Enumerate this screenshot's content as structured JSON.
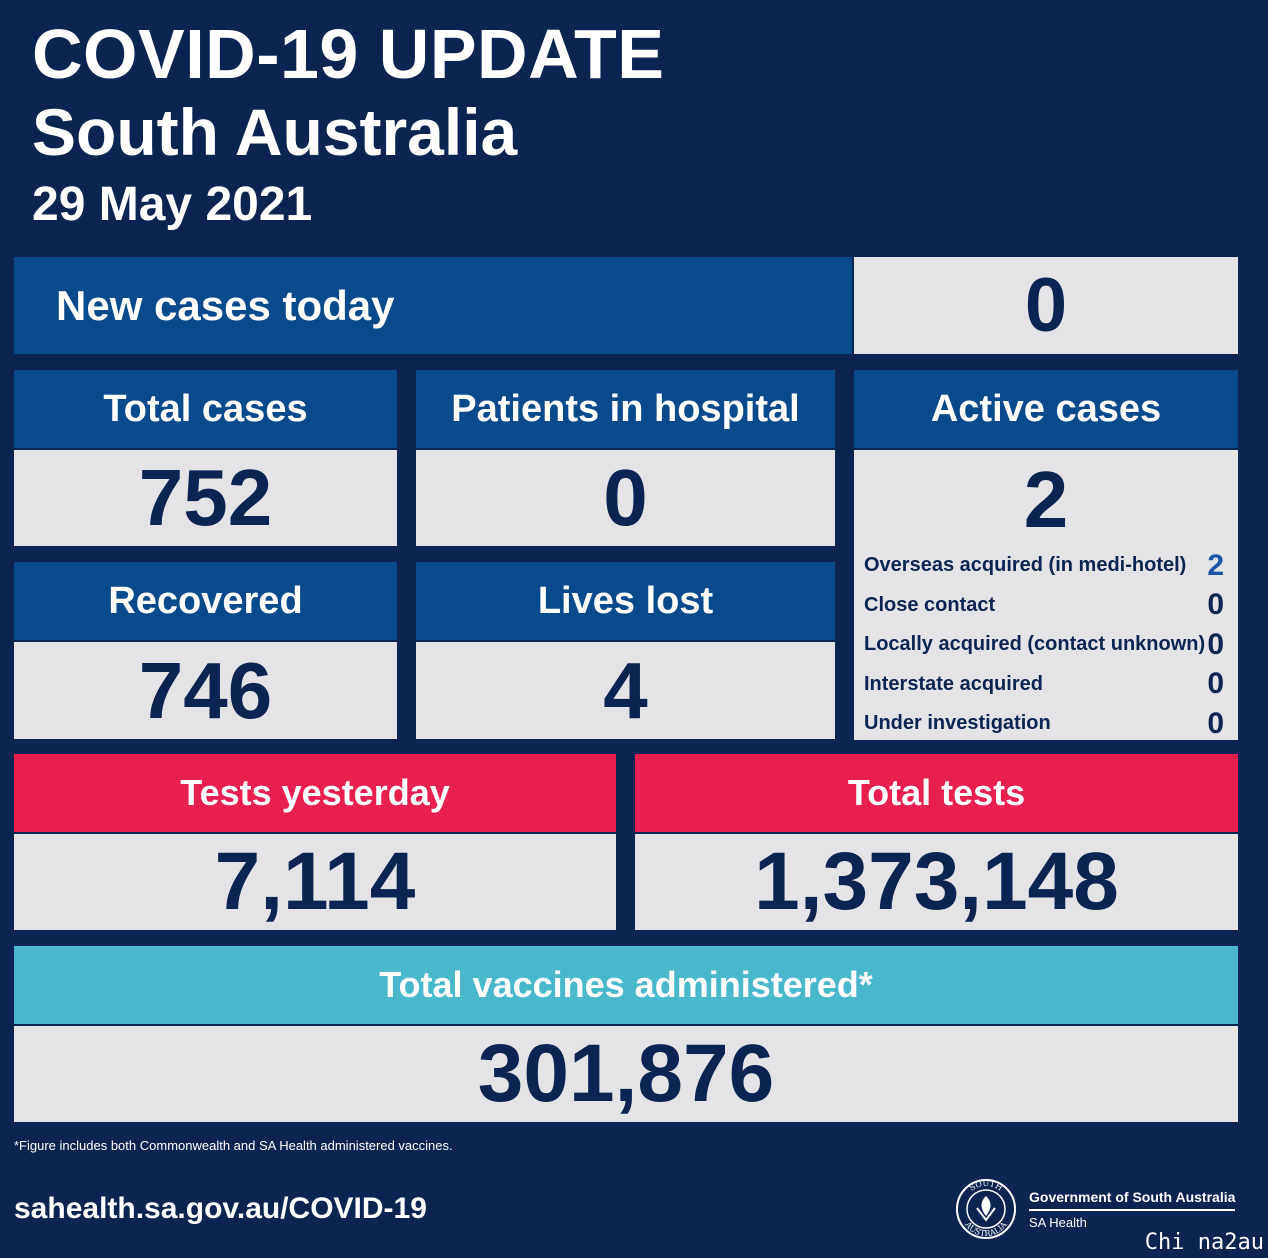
{
  "header": {
    "title": "COVID-19 UPDATE",
    "region": "South Australia",
    "date": "29 May 2021"
  },
  "new_cases": {
    "label": "New cases today",
    "value": "0"
  },
  "total_cases": {
    "label": "Total cases",
    "value": "752"
  },
  "hospital": {
    "label": "Patients in hospital",
    "value": "0"
  },
  "active": {
    "label": "Active cases",
    "value": "2",
    "breakdown": [
      {
        "label": "Overseas acquired (in medi-hotel)",
        "value": "2"
      },
      {
        "label": "Close contact",
        "value": "0"
      },
      {
        "label": "Locally acquired (contact unknown)",
        "value": "0"
      },
      {
        "label": "Interstate acquired",
        "value": "0"
      },
      {
        "label": "Under investigation",
        "value": "0"
      }
    ]
  },
  "recovered": {
    "label": "Recovered",
    "value": "746"
  },
  "lives_lost": {
    "label": "Lives lost",
    "value": "4"
  },
  "tests_yesterday": {
    "label": "Tests yesterday",
    "value": "7,114"
  },
  "total_tests": {
    "label": "Total tests",
    "value": "1,373,148"
  },
  "vaccines": {
    "label": "Total vaccines administered*",
    "value": "301,876"
  },
  "footnote": "*Figure includes both Commonwealth and SA Health administered vaccines.",
  "footer": {
    "website": "sahealth.sa.gov.au/COVID-19",
    "gov_name": "Government of South Australia",
    "dept": "SA Health",
    "seal_text_top": "SOUTH",
    "seal_text_bottom": "AUSTRALIA"
  },
  "watermark": "Chi na2au",
  "colors": {
    "background": "#0b2452",
    "header_blue": "#084a8c",
    "header_red": "#e8204f",
    "header_teal": "#4ab8cc",
    "value_bg": "#e4e4e6",
    "value_text": "#0b2452"
  },
  "icons": [
    "sa-government-seal-icon"
  ]
}
